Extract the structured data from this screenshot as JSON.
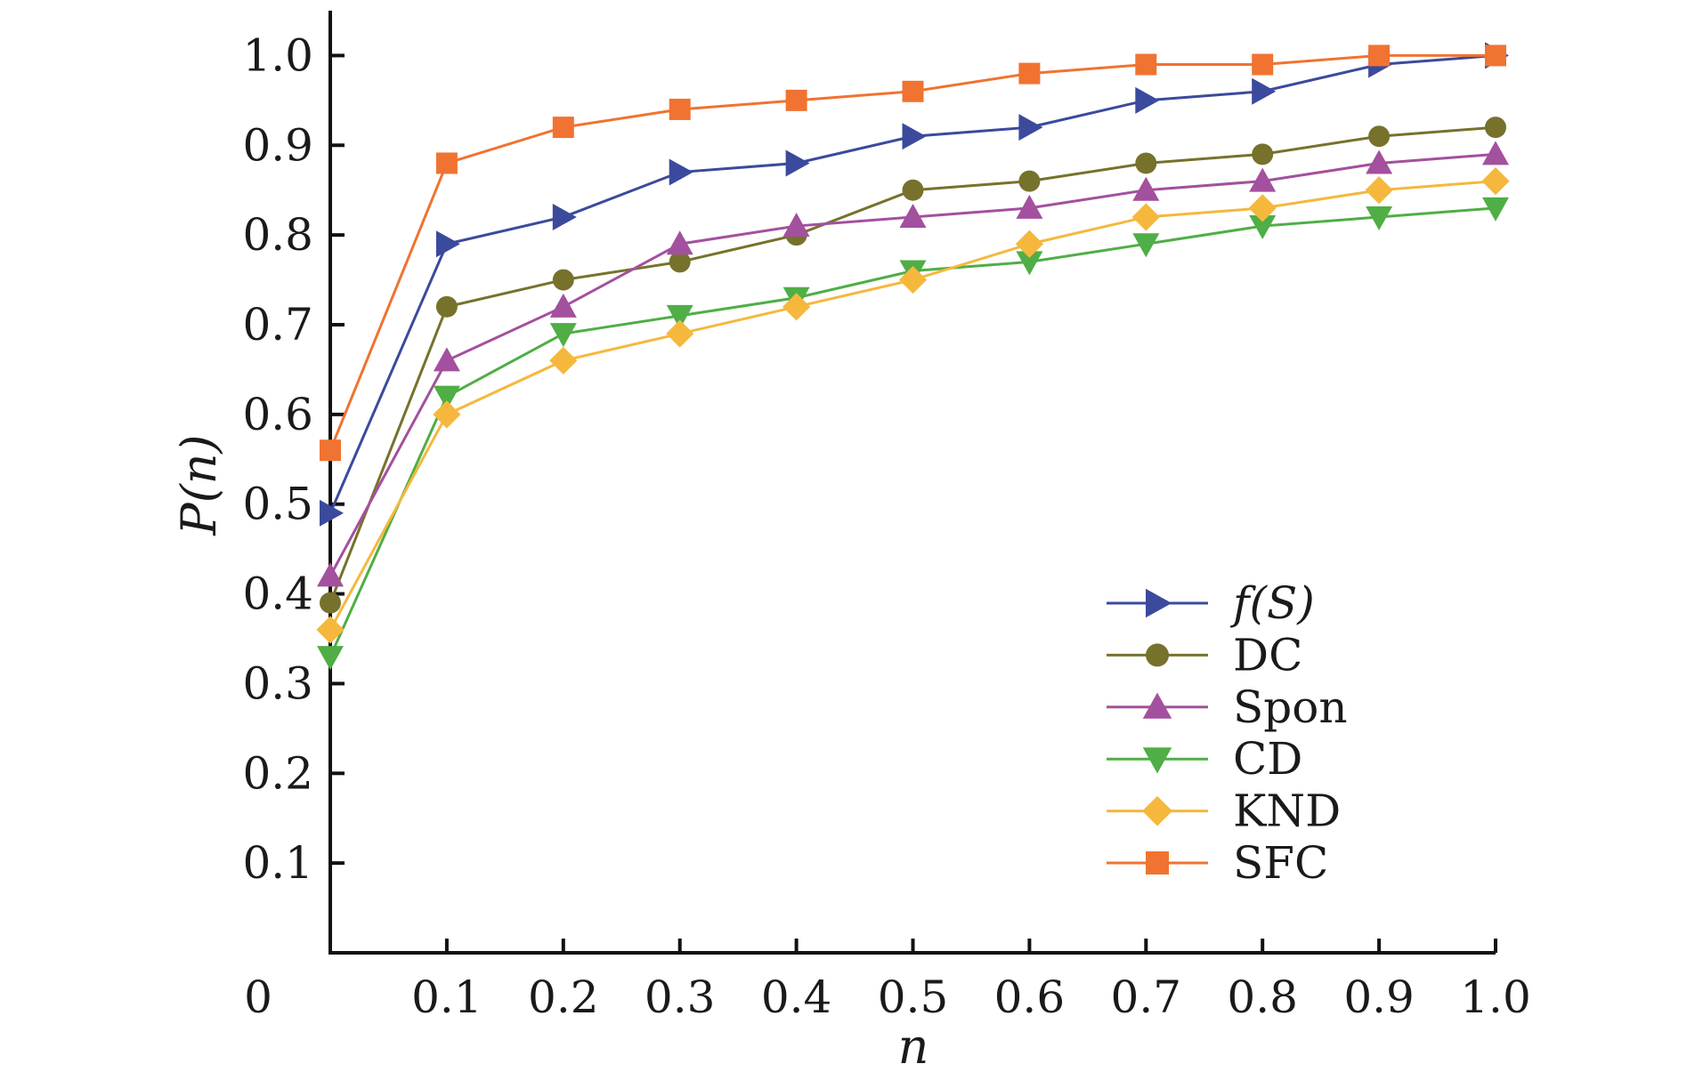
{
  "chart_data": {
    "type": "line",
    "xlabel": "n",
    "ylabel": "P(n)",
    "origin_label": "0",
    "xlim": [
      0,
      1.0
    ],
    "ylim": [
      0,
      1.05
    ],
    "x": [
      0,
      0.1,
      0.2,
      0.3,
      0.4,
      0.5,
      0.6,
      0.7,
      0.8,
      0.9,
      1.0
    ],
    "x_tick_values": [
      0.1,
      0.2,
      0.3,
      0.4,
      0.5,
      0.6,
      0.7,
      0.8,
      0.9,
      1.0
    ],
    "x_tick_labels": [
      "0.1",
      "0.2",
      "0.3",
      "0.4",
      "0.5",
      "0.6",
      "0.7",
      "0.8",
      "0.9",
      "1.0"
    ],
    "y_tick_values": [
      0.1,
      0.2,
      0.3,
      0.4,
      0.5,
      0.6,
      0.7,
      0.8,
      0.9,
      1.0
    ],
    "y_tick_labels": [
      "0.1",
      "0.2",
      "0.3",
      "0.4",
      "0.5",
      "0.6",
      "0.7",
      "0.8",
      "0.9",
      "1.0"
    ],
    "grid": false,
    "legend_position": "bottom-right",
    "series": [
      {
        "name": "f(S)",
        "marker": "triangle-right",
        "color": "#3b4a9c",
        "values": [
          0.49,
          0.79,
          0.82,
          0.87,
          0.88,
          0.91,
          0.92,
          0.95,
          0.96,
          0.99,
          1.0
        ]
      },
      {
        "name": "DC",
        "marker": "circle",
        "color": "#76722c",
        "values": [
          0.39,
          0.72,
          0.75,
          0.77,
          0.8,
          0.85,
          0.86,
          0.88,
          0.89,
          0.91,
          0.92
        ]
      },
      {
        "name": "Spon",
        "marker": "triangle-up",
        "color": "#a3509e",
        "values": [
          0.42,
          0.66,
          0.72,
          0.79,
          0.81,
          0.82,
          0.83,
          0.85,
          0.86,
          0.88,
          0.89
        ]
      },
      {
        "name": "CD",
        "marker": "triangle-down",
        "color": "#4fae45",
        "values": [
          0.33,
          0.62,
          0.69,
          0.71,
          0.73,
          0.76,
          0.77,
          0.79,
          0.81,
          0.82,
          0.83
        ]
      },
      {
        "name": "KND",
        "marker": "diamond",
        "color": "#f5b83d",
        "values": [
          0.36,
          0.6,
          0.66,
          0.69,
          0.72,
          0.75,
          0.79,
          0.82,
          0.83,
          0.85,
          0.86
        ]
      },
      {
        "name": "SFC",
        "marker": "square",
        "color": "#f07331",
        "values": [
          0.56,
          0.88,
          0.92,
          0.94,
          0.95,
          0.96,
          0.98,
          0.99,
          0.99,
          1.0,
          1.0
        ]
      }
    ]
  }
}
